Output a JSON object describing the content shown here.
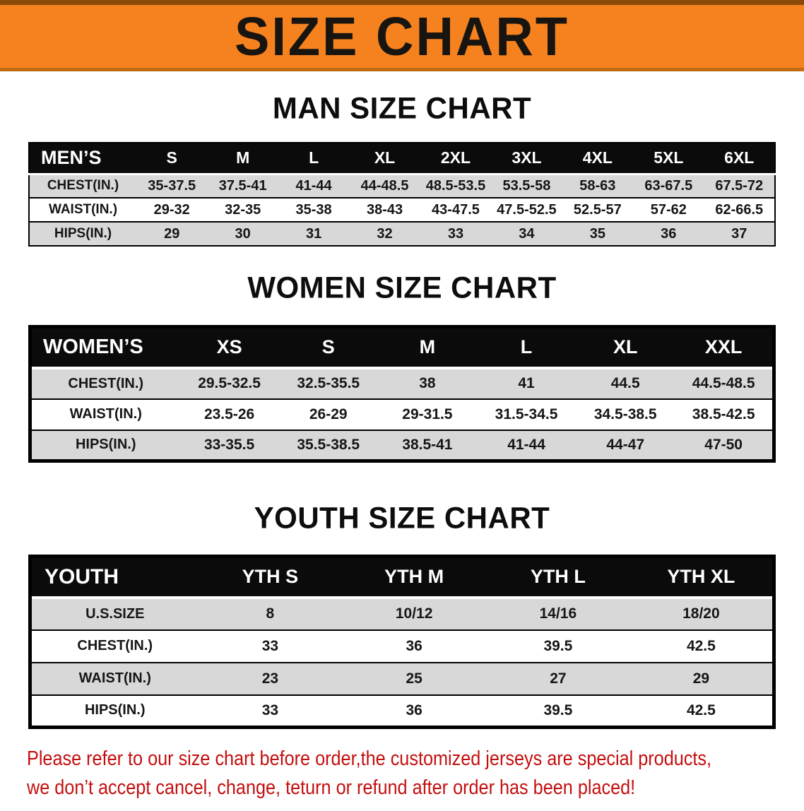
{
  "banner": {
    "title": "SIZE CHART",
    "bg_color": "#f5821f",
    "text_color": "#181410"
  },
  "sections": [
    {
      "title": "MAN SIZE CHART",
      "table": {
        "header": [
          "MEN’S",
          "S",
          "M",
          "L",
          "XL",
          "2XL",
          "3XL",
          "4XL",
          "5XL",
          "6XL"
        ],
        "rows": [
          [
            "CHEST(IN.)",
            "35-37.5",
            "37.5-41",
            "41-44",
            "44-48.5",
            "48.5-53.5",
            "53.5-58",
            "58-63",
            "63-67.5",
            "67.5-72"
          ],
          [
            "WAIST(IN.)",
            "29-32",
            "32-35",
            "35-38",
            "38-43",
            "43-47.5",
            "47.5-52.5",
            "52.5-57",
            "57-62",
            "62-66.5"
          ],
          [
            "HIPS(IN.)",
            "29",
            "30",
            "31",
            "32",
            "33",
            "34",
            "35",
            "36",
            "37"
          ]
        ]
      }
    },
    {
      "title": "WOMEN SIZE CHART",
      "table": {
        "header": [
          "WOMEN’S",
          "XS",
          "S",
          "M",
          "L",
          "XL",
          "XXL"
        ],
        "rows": [
          [
            "CHEST(IN.)",
            "29.5-32.5",
            "32.5-35.5",
            "38",
            "41",
            "44.5",
            "44.5-48.5"
          ],
          [
            "WAIST(IN.)",
            "23.5-26",
            "26-29",
            "29-31.5",
            "31.5-34.5",
            "34.5-38.5",
            "38.5-42.5"
          ],
          [
            "HIPS(IN.)",
            "33-35.5",
            "35.5-38.5",
            "38.5-41",
            "41-44",
            "44-47",
            "47-50"
          ]
        ]
      }
    },
    {
      "title": "YOUTH SIZE CHART",
      "table": {
        "header": [
          "YOUTH",
          "YTH S",
          "YTH M",
          "YTH L",
          "YTH XL"
        ],
        "rows": [
          [
            "U.S.SIZE",
            "8",
            "10/12",
            "14/16",
            "18/20"
          ],
          [
            "CHEST(IN.)",
            "33",
            "36",
            "39.5",
            "42.5"
          ],
          [
            "WAIST(IN.)",
            "23",
            "25",
            "27",
            "29"
          ],
          [
            "HIPS(IN.)",
            "33",
            "36",
            "39.5",
            "42.5"
          ]
        ]
      }
    }
  ],
  "footer": {
    "line1": "Please refer to our size chart before order,the customized jerseys are special products,",
    "line2": "we don’t accept cancel, change, teturn or refund after order has been placed!",
    "color": "#c40f0f"
  }
}
